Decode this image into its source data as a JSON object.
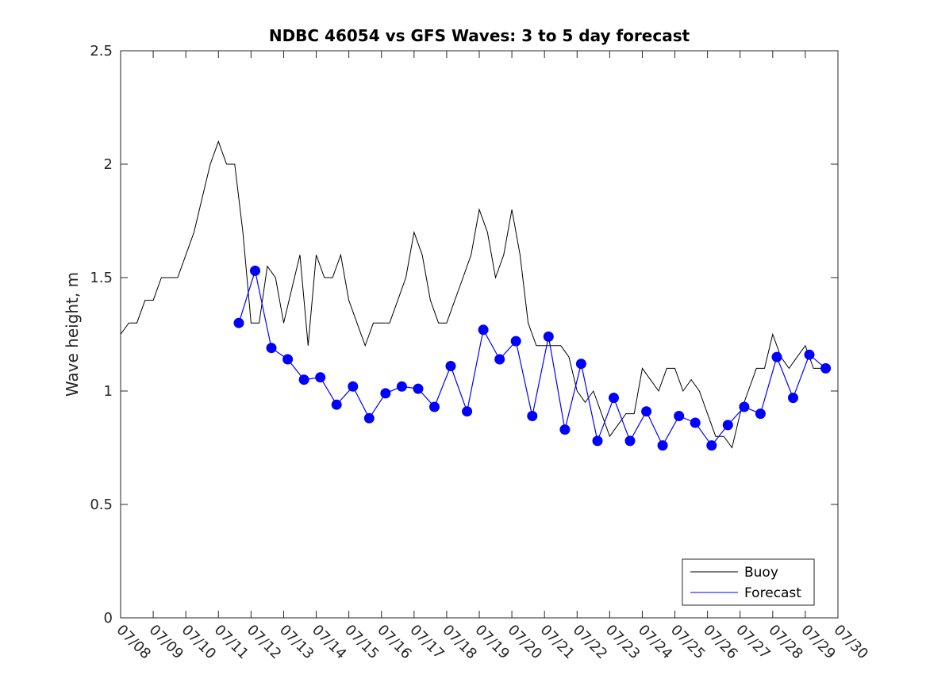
{
  "chart_data": {
    "type": "line",
    "title": "NDBC 46054 vs GFS Waves: 3 to 5 day forecast",
    "xlabel": "",
    "ylabel": "Wave height, m",
    "ylim": [
      0,
      2.5
    ],
    "yticks": [
      "0",
      "0.5",
      "1",
      "1.5",
      "2",
      "2.5"
    ],
    "xlim_days": [
      0,
      22
    ],
    "x_tick_labels": [
      "07/08",
      "07/09",
      "07/10",
      "07/11",
      "07/12",
      "07/13",
      "07/14",
      "07/15",
      "07/16",
      "07/17",
      "07/18",
      "07/19",
      "07/20",
      "07/21",
      "07/22",
      "07/23",
      "07/24",
      "07/25",
      "07/26",
      "07/27",
      "07/28",
      "07/29",
      "07/30"
    ],
    "grid": false,
    "legend_position": "bottom-right",
    "legend": [
      "Buoy",
      "Forecast"
    ],
    "colors": {
      "buoy": "#000000",
      "forecast": "#0000ff"
    },
    "series": [
      {
        "name": "Buoy",
        "x": [
          "07/08 00:00",
          "07/08 06:00",
          "07/08 12:00",
          "07/08 18:00",
          "07/09 00:00",
          "07/09 06:00",
          "07/09 12:00",
          "07/09 18:00",
          "07/10 00:00",
          "07/10 06:00",
          "07/10 12:00",
          "07/10 18:00",
          "07/11 00:00",
          "07/11 06:00",
          "07/11 12:00",
          "07/11 18:00",
          "07/12 00:00",
          "07/12 06:00",
          "07/12 12:00",
          "07/12 18:00",
          "07/13 00:00",
          "07/13 06:00",
          "07/13 12:00",
          "07/13 18:00",
          "07/14 00:00",
          "07/14 06:00",
          "07/14 12:00",
          "07/14 18:00",
          "07/15 00:00",
          "07/15 06:00",
          "07/15 12:00",
          "07/15 18:00",
          "07/16 00:00",
          "07/16 06:00",
          "07/16 12:00",
          "07/16 18:00",
          "07/17 00:00",
          "07/17 06:00",
          "07/17 12:00",
          "07/17 18:00",
          "07/18 00:00",
          "07/18 06:00",
          "07/18 12:00",
          "07/18 18:00",
          "07/19 00:00",
          "07/19 06:00",
          "07/19 12:00",
          "07/19 18:00",
          "07/20 00:00",
          "07/20 06:00",
          "07/20 12:00",
          "07/20 18:00",
          "07/21 00:00",
          "07/21 06:00",
          "07/21 12:00",
          "07/21 18:00",
          "07/22 00:00",
          "07/22 06:00",
          "07/22 12:00",
          "07/22 18:00",
          "07/23 00:00",
          "07/23 06:00",
          "07/23 12:00",
          "07/23 18:00",
          "07/24 00:00",
          "07/24 06:00",
          "07/24 12:00",
          "07/24 18:00",
          "07/25 00:00",
          "07/25 06:00",
          "07/25 12:00",
          "07/25 18:00",
          "07/26 00:00",
          "07/26 06:00",
          "07/26 12:00",
          "07/26 18:00",
          "07/27 00:00",
          "07/27 06:00",
          "07/27 12:00",
          "07/27 18:00",
          "07/28 00:00",
          "07/28 06:00",
          "07/28 12:00",
          "07/28 18:00",
          "07/29 00:00",
          "07/29 06:00",
          "07/29 12:00"
        ],
        "values": [
          1.25,
          1.3,
          1.3,
          1.4,
          1.4,
          1.5,
          1.5,
          1.5,
          1.6,
          1.7,
          1.85,
          2.0,
          2.1,
          2.0,
          2.0,
          1.7,
          1.3,
          1.3,
          1.55,
          1.5,
          1.3,
          1.45,
          1.6,
          1.2,
          1.6,
          1.5,
          1.5,
          1.6,
          1.4,
          1.3,
          1.2,
          1.3,
          1.3,
          1.3,
          1.4,
          1.5,
          1.7,
          1.6,
          1.4,
          1.3,
          1.3,
          1.4,
          1.5,
          1.6,
          1.8,
          1.7,
          1.5,
          1.6,
          1.8,
          1.6,
          1.3,
          1.2,
          1.2,
          1.2,
          1.2,
          1.15,
          1.0,
          0.95,
          1.0,
          0.9,
          0.8,
          0.85,
          0.9,
          0.9,
          1.1,
          1.05,
          1.0,
          1.1,
          1.1,
          1.0,
          1.05,
          1.0,
          0.9,
          0.8,
          0.8,
          0.75,
          0.9,
          1.0,
          1.1,
          1.1,
          1.25,
          1.15,
          1.1,
          1.15,
          1.2,
          1.1,
          1.1
        ]
      },
      {
        "name": "Forecast",
        "x": [
          "07/11 15:00",
          "07/12 03:00",
          "07/12 15:00",
          "07/13 03:00",
          "07/13 15:00",
          "07/14 03:00",
          "07/14 15:00",
          "07/15 03:00",
          "07/15 15:00",
          "07/16 03:00",
          "07/16 15:00",
          "07/17 03:00",
          "07/17 15:00",
          "07/18 03:00",
          "07/18 15:00",
          "07/19 03:00",
          "07/19 15:00",
          "07/20 03:00",
          "07/20 15:00",
          "07/21 03:00",
          "07/21 15:00",
          "07/22 03:00",
          "07/22 15:00",
          "07/23 03:00",
          "07/23 15:00",
          "07/24 03:00",
          "07/24 15:00",
          "07/25 03:00",
          "07/25 15:00",
          "07/26 03:00",
          "07/26 15:00",
          "07/27 03:00",
          "07/27 15:00",
          "07/28 03:00",
          "07/28 15:00",
          "07/29 03:00",
          "07/29 15:00"
        ],
        "values": [
          1.3,
          1.53,
          1.19,
          1.14,
          1.05,
          1.06,
          0.94,
          1.02,
          0.88,
          0.99,
          1.02,
          1.01,
          0.93,
          1.11,
          0.91,
          1.27,
          1.14,
          1.22,
          0.89,
          1.24,
          0.83,
          1.12,
          0.78,
          0.97,
          0.78,
          0.91,
          0.76,
          0.89,
          0.86,
          0.76,
          0.85,
          0.93,
          0.9,
          1.15,
          0.97,
          1.16,
          1.1
        ]
      }
    ]
  }
}
